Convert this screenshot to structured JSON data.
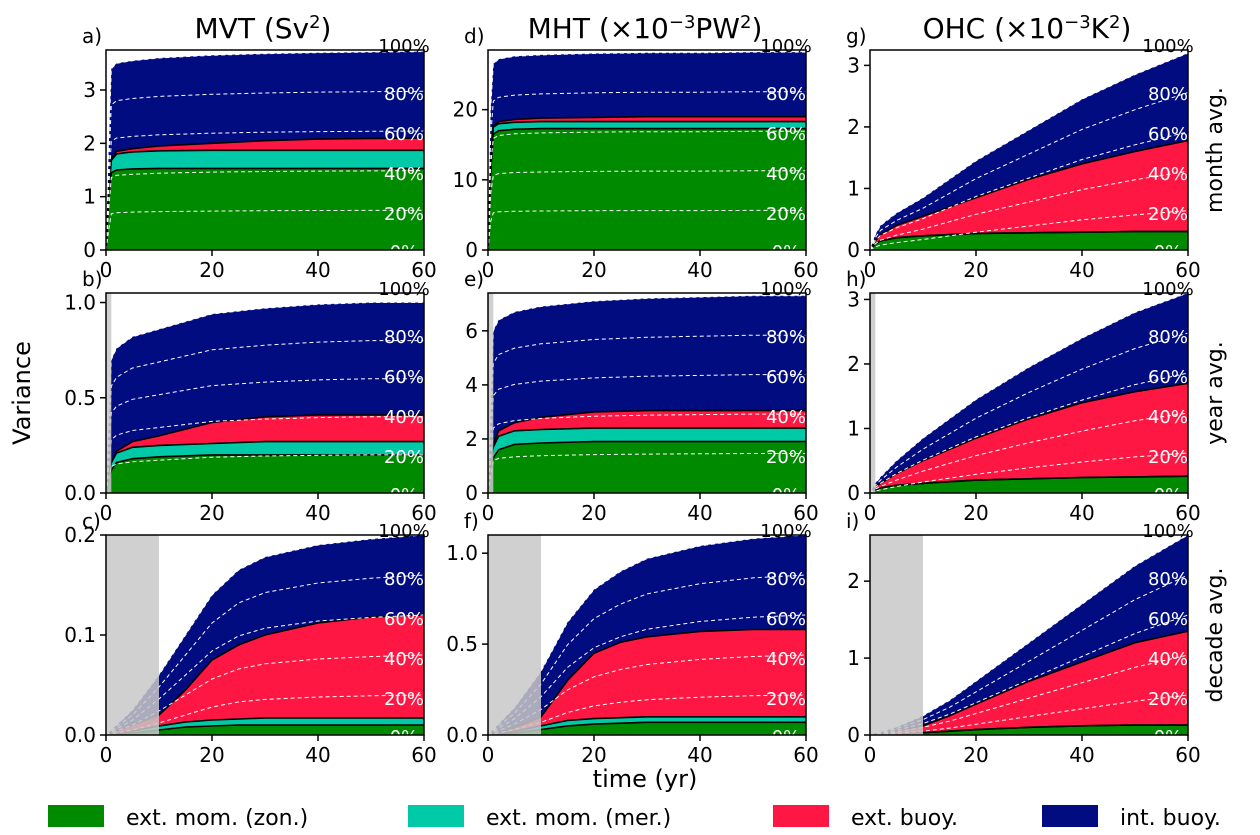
{
  "figure": {
    "ylabel": "Variance",
    "xlabel": "time (yr)",
    "column_titles": [
      {
        "main": "MVT (Sv",
        "sup": "2",
        "tail": ")"
      },
      {
        "main": "MHT (×10",
        "sup": "−3",
        "tail": "PW",
        "sup2": "2",
        "tail2": ")"
      },
      {
        "main": "OHC (×10",
        "sup": "−3",
        "tail": "K",
        "sup2": "2",
        "tail2": ")"
      }
    ],
    "row_labels": [
      "month avg.",
      "year avg.",
      "decade avg."
    ],
    "percent_labels": [
      "100%",
      "80%",
      "60%",
      "40%",
      "20%",
      "0%"
    ],
    "legend": [
      {
        "label": "ext. mom. (zon.)",
        "color": "#008a00"
      },
      {
        "label": "ext. mom. (mer.)",
        "color": "#00c9a7"
      },
      {
        "label": "ext. buoy.",
        "color": "#ff1744"
      },
      {
        "label": "int. buoy.",
        "color": "#000c80"
      }
    ]
  },
  "chart_data": [
    {
      "type": "area",
      "panel": "a)",
      "col": 0,
      "row": 0,
      "x": [
        0,
        0.5,
        1,
        2,
        5,
        10,
        20,
        30,
        40,
        50,
        60
      ],
      "xlim": [
        0,
        60
      ],
      "ylim": [
        0,
        3.75
      ],
      "yticks": [
        0,
        1,
        2,
        3
      ],
      "yticklabels": [
        "0",
        "1",
        "2",
        "3"
      ],
      "xticks": [
        0,
        20,
        40,
        60
      ],
      "xticklabels": [
        "0",
        "20",
        "40",
        "60"
      ],
      "shade_x": 0,
      "series": [
        {
          "name": "ext. mom. (zon.)",
          "values": [
            0,
            1.0,
            1.45,
            1.5,
            1.52,
            1.53,
            1.53,
            1.53,
            1.53,
            1.53,
            1.53
          ]
        },
        {
          "name": "ext. mom. (mer.)",
          "values": [
            0,
            1.12,
            1.68,
            1.8,
            1.84,
            1.86,
            1.87,
            1.87,
            1.87,
            1.87,
            1.87
          ]
        },
        {
          "name": "ext. buoy.",
          "values": [
            0,
            1.12,
            1.7,
            1.85,
            1.9,
            1.95,
            2.0,
            2.05,
            2.08,
            2.09,
            2.1
          ]
        },
        {
          "name": "int. buoy.",
          "values": [
            0,
            1.9,
            3.4,
            3.5,
            3.55,
            3.6,
            3.65,
            3.68,
            3.7,
            3.71,
            3.72
          ]
        }
      ]
    },
    {
      "type": "area",
      "panel": "b)",
      "col": 0,
      "row": 1,
      "x": [
        0,
        0.5,
        1,
        2,
        5,
        10,
        20,
        30,
        40,
        50,
        60
      ],
      "xlim": [
        0,
        60
      ],
      "ylim": [
        0,
        1.05
      ],
      "yticks": [
        0,
        0.5,
        1.0
      ],
      "yticklabels": [
        "0.0",
        "0.5",
        "1.0"
      ],
      "xticks": [
        0,
        20,
        40,
        60
      ],
      "xticklabels": [
        "0",
        "20",
        "40",
        "60"
      ],
      "shade_x": 1,
      "series": [
        {
          "name": "ext. mom. (zon.)",
          "values": [
            0,
            0.06,
            0.12,
            0.16,
            0.18,
            0.19,
            0.2,
            0.2,
            0.2,
            0.2,
            0.2
          ]
        },
        {
          "name": "ext. mom. (mer.)",
          "values": [
            0,
            0.08,
            0.16,
            0.21,
            0.24,
            0.25,
            0.26,
            0.27,
            0.27,
            0.27,
            0.27
          ]
        },
        {
          "name": "ext. buoy.",
          "values": [
            0,
            0.08,
            0.16,
            0.22,
            0.27,
            0.3,
            0.37,
            0.4,
            0.41,
            0.41,
            0.41
          ]
        },
        {
          "name": "int. buoy.",
          "values": [
            0,
            0.35,
            0.7,
            0.76,
            0.82,
            0.86,
            0.94,
            0.97,
            0.99,
            1.0,
            1.0
          ]
        }
      ]
    },
    {
      "type": "area",
      "panel": "c)",
      "col": 0,
      "row": 2,
      "x": [
        0,
        5,
        10,
        15,
        20,
        25,
        30,
        40,
        50,
        60
      ],
      "xlim": [
        0,
        60
      ],
      "ylim": [
        0,
        0.2
      ],
      "yticks": [
        0,
        0.1,
        0.2
      ],
      "yticklabels": [
        "0.0",
        "0.1",
        "0.2"
      ],
      "xticks": [
        0,
        20,
        40,
        60
      ],
      "xticklabels": [
        "0",
        "20",
        "40",
        "60"
      ],
      "shade_x": 10,
      "series": [
        {
          "name": "ext. mom. (zon.)",
          "values": [
            0,
            0.002,
            0.005,
            0.008,
            0.009,
            0.01,
            0.01,
            0.01,
            0.01,
            0.01
          ]
        },
        {
          "name": "ext. mom. (mer.)",
          "values": [
            0,
            0.004,
            0.009,
            0.013,
            0.015,
            0.016,
            0.017,
            0.017,
            0.017,
            0.017
          ]
        },
        {
          "name": "ext. buoy.",
          "values": [
            0,
            0.01,
            0.02,
            0.045,
            0.075,
            0.09,
            0.1,
            0.112,
            0.118,
            0.12
          ]
        },
        {
          "name": "int. buoy.",
          "values": [
            0,
            0.025,
            0.06,
            0.1,
            0.14,
            0.165,
            0.178,
            0.19,
            0.196,
            0.2
          ]
        }
      ]
    },
    {
      "type": "area",
      "panel": "d)",
      "col": 1,
      "row": 0,
      "x": [
        0,
        0.5,
        1,
        2,
        5,
        10,
        20,
        30,
        40,
        50,
        60
      ],
      "xlim": [
        0,
        60
      ],
      "ylim": [
        0,
        28.5
      ],
      "yticks": [
        0,
        10,
        20
      ],
      "yticklabels": [
        "0",
        "10",
        "20"
      ],
      "xticks": [
        0,
        20,
        40,
        60
      ],
      "xticklabels": [
        "0",
        "20",
        "40",
        "60"
      ],
      "shade_x": 0,
      "series": [
        {
          "name": "ext. mom. (zon.)",
          "values": [
            0,
            11,
            16.5,
            17,
            17.2,
            17.3,
            17.3,
            17.3,
            17.3,
            17.3,
            17.3
          ]
        },
        {
          "name": "ext. mom. (mer.)",
          "values": [
            0,
            12,
            17.5,
            18,
            18.2,
            18.3,
            18.3,
            18.3,
            18.3,
            18.3,
            18.3
          ]
        },
        {
          "name": "ext. buoy.",
          "values": [
            0,
            12,
            17.7,
            18.3,
            18.6,
            18.8,
            18.9,
            19,
            19,
            19,
            19
          ]
        },
        {
          "name": "int. buoy.",
          "values": [
            0,
            20,
            26.5,
            27.2,
            27.6,
            27.8,
            28,
            28.1,
            28.1,
            28.2,
            28.2
          ]
        }
      ]
    },
    {
      "type": "area",
      "panel": "e)",
      "col": 1,
      "row": 1,
      "x": [
        0,
        0.5,
        1,
        2,
        5,
        10,
        20,
        30,
        40,
        50,
        60
      ],
      "xlim": [
        0,
        60
      ],
      "ylim": [
        0,
        7.4
      ],
      "yticks": [
        0,
        2,
        4,
        6
      ],
      "yticklabels": [
        "0",
        "2",
        "4",
        "6"
      ],
      "xticks": [
        0,
        20,
        40,
        60
      ],
      "xticklabels": [
        "0",
        "20",
        "40",
        "60"
      ],
      "shade_x": 1,
      "series": [
        {
          "name": "ext. mom. (zon.)",
          "values": [
            0,
            0.8,
            1.3,
            1.6,
            1.8,
            1.85,
            1.9,
            1.9,
            1.9,
            1.9,
            1.9
          ]
        },
        {
          "name": "ext. mom. (mer.)",
          "values": [
            0,
            1.0,
            1.7,
            2.1,
            2.3,
            2.35,
            2.4,
            2.4,
            2.4,
            2.4,
            2.4
          ]
        },
        {
          "name": "ext. buoy.",
          "values": [
            0,
            1.0,
            1.8,
            2.3,
            2.6,
            2.8,
            3.0,
            3.05,
            3.05,
            3.05,
            3.05
          ]
        },
        {
          "name": "int. buoy.",
          "values": [
            0,
            3.0,
            6.0,
            6.4,
            6.7,
            6.9,
            7.1,
            7.2,
            7.25,
            7.3,
            7.3
          ]
        }
      ]
    },
    {
      "type": "area",
      "panel": "f)",
      "col": 1,
      "row": 2,
      "x": [
        0,
        5,
        10,
        15,
        20,
        25,
        30,
        40,
        50,
        60
      ],
      "xlim": [
        0,
        60
      ],
      "ylim": [
        0,
        1.1
      ],
      "yticks": [
        0,
        0.5,
        1.0
      ],
      "yticklabels": [
        "0.0",
        "0.5",
        "1.0"
      ],
      "xticks": [
        0,
        20,
        40,
        60
      ],
      "xticklabels": [
        "0",
        "20",
        "40",
        "60"
      ],
      "shade_x": 10,
      "series": [
        {
          "name": "ext. mom. (zon.)",
          "values": [
            0,
            0.01,
            0.03,
            0.05,
            0.06,
            0.065,
            0.07,
            0.07,
            0.07,
            0.07
          ]
        },
        {
          "name": "ext. mom. (mer.)",
          "values": [
            0,
            0.02,
            0.05,
            0.08,
            0.09,
            0.095,
            0.1,
            0.1,
            0.1,
            0.1
          ]
        },
        {
          "name": "ext. buoy.",
          "values": [
            0,
            0.04,
            0.1,
            0.3,
            0.45,
            0.51,
            0.54,
            0.57,
            0.58,
            0.58
          ]
        },
        {
          "name": "int. buoy.",
          "values": [
            0,
            0.15,
            0.35,
            0.62,
            0.8,
            0.9,
            0.97,
            1.04,
            1.08,
            1.1
          ]
        }
      ]
    },
    {
      "type": "area",
      "panel": "g)",
      "col": 2,
      "row": 0,
      "x": [
        0,
        1,
        2,
        5,
        10,
        20,
        30,
        40,
        50,
        60
      ],
      "xlim": [
        0,
        60
      ],
      "ylim": [
        0,
        3.25
      ],
      "yticks": [
        0,
        1,
        2,
        3
      ],
      "yticklabels": [
        "0",
        "1",
        "2",
        "3"
      ],
      "xticks": [
        0,
        20,
        40,
        60
      ],
      "xticklabels": [
        "0",
        "20",
        "40",
        "60"
      ],
      "shade_x": 0,
      "series": [
        {
          "name": "ext. mom. (zon.)",
          "values": [
            0,
            0.1,
            0.15,
            0.2,
            0.23,
            0.27,
            0.28,
            0.29,
            0.3,
            0.3
          ]
        },
        {
          "name": "ext. mom. (mer.)",
          "values": [
            0,
            0.1,
            0.15,
            0.2,
            0.23,
            0.27,
            0.28,
            0.29,
            0.3,
            0.3
          ]
        },
        {
          "name": "ext. buoy.",
          "values": [
            0,
            0.15,
            0.25,
            0.4,
            0.55,
            0.85,
            1.15,
            1.4,
            1.6,
            1.78
          ]
        },
        {
          "name": "int. buoy.",
          "values": [
            0,
            0.25,
            0.4,
            0.6,
            0.85,
            1.45,
            1.95,
            2.45,
            2.85,
            3.2
          ]
        }
      ]
    },
    {
      "type": "area",
      "panel": "h)",
      "col": 2,
      "row": 1,
      "x": [
        0,
        1,
        2,
        5,
        10,
        20,
        30,
        40,
        50,
        60
      ],
      "xlim": [
        0,
        60
      ],
      "ylim": [
        0,
        3.1
      ],
      "yticks": [
        0,
        1,
        2,
        3
      ],
      "yticklabels": [
        "0",
        "1",
        "2",
        "3"
      ],
      "xticks": [
        0,
        20,
        40,
        60
      ],
      "xticklabels": [
        "0",
        "20",
        "40",
        "60"
      ],
      "shade_x": 1,
      "series": [
        {
          "name": "ext. mom. (zon.)",
          "values": [
            0,
            0.05,
            0.08,
            0.12,
            0.15,
            0.2,
            0.22,
            0.24,
            0.25,
            0.26
          ]
        },
        {
          "name": "ext. mom. (mer.)",
          "values": [
            0,
            0.05,
            0.08,
            0.12,
            0.15,
            0.2,
            0.22,
            0.24,
            0.25,
            0.26
          ]
        },
        {
          "name": "ext. buoy.",
          "values": [
            0,
            0.1,
            0.15,
            0.3,
            0.5,
            0.85,
            1.15,
            1.4,
            1.57,
            1.7
          ]
        },
        {
          "name": "int. buoy.",
          "values": [
            0,
            0.15,
            0.25,
            0.5,
            0.85,
            1.45,
            1.95,
            2.4,
            2.8,
            3.1
          ]
        }
      ]
    },
    {
      "type": "area",
      "panel": "i)",
      "col": 2,
      "row": 2,
      "x": [
        0,
        5,
        10,
        15,
        20,
        30,
        40,
        50,
        60
      ],
      "xlim": [
        0,
        60
      ],
      "ylim": [
        0,
        2.6
      ],
      "yticks": [
        0,
        1,
        2
      ],
      "yticklabels": [
        "0",
        "1",
        "2"
      ],
      "xticks": [
        0,
        20,
        40,
        60
      ],
      "xticklabels": [
        "0",
        "20",
        "40",
        "60"
      ],
      "shade_x": 10,
      "series": [
        {
          "name": "ext. mom. (zon.)",
          "values": [
            0,
            0.01,
            0.03,
            0.05,
            0.07,
            0.1,
            0.12,
            0.13,
            0.13
          ]
        },
        {
          "name": "ext. mom. (mer.)",
          "values": [
            0,
            0.01,
            0.03,
            0.05,
            0.07,
            0.1,
            0.12,
            0.13,
            0.13
          ]
        },
        {
          "name": "ext. buoy.",
          "values": [
            0,
            0.05,
            0.12,
            0.25,
            0.4,
            0.7,
            0.95,
            1.2,
            1.35
          ]
        },
        {
          "name": "int. buoy.",
          "values": [
            0,
            0.1,
            0.25,
            0.45,
            0.7,
            1.2,
            1.7,
            2.2,
            2.6
          ]
        }
      ]
    }
  ]
}
